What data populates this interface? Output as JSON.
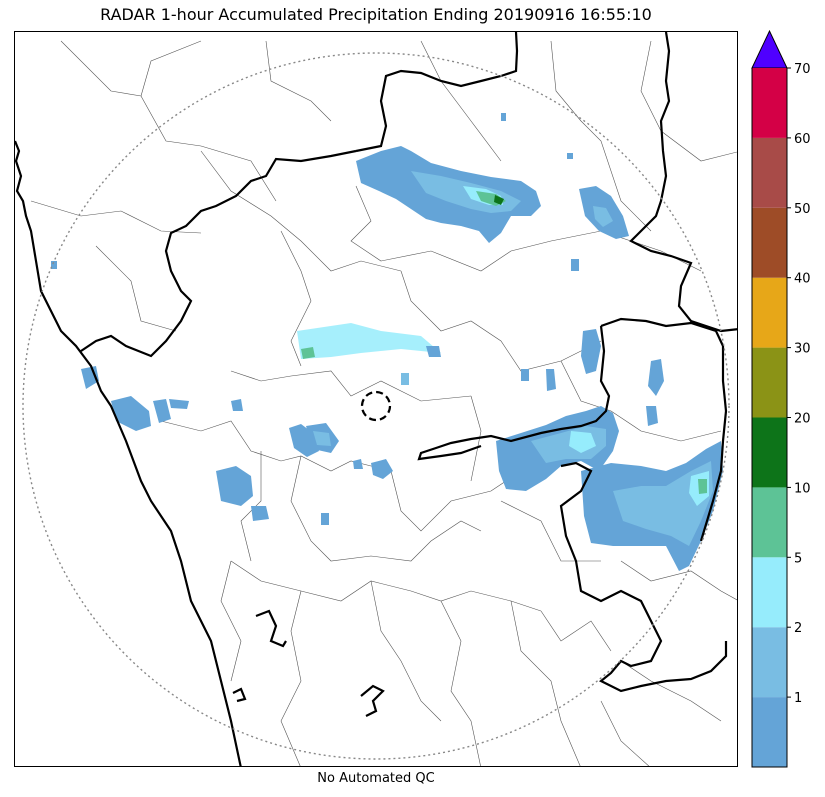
{
  "title": "RADAR 1-hour Accumulated Precipitation Ending 20190916 16:55:10",
  "footer": "No Automated QC",
  "colorbar": {
    "levels": [
      {
        "color": "#64a4d7",
        "label": "1"
      },
      {
        "color": "#79bde3",
        "label": "2"
      },
      {
        "color": "#96ecfc",
        "label": "5"
      },
      {
        "color": "#5dc396",
        "label": "10"
      },
      {
        "color": "#0d7419",
        "label": "20"
      },
      {
        "color": "#8b9316",
        "label": "30"
      },
      {
        "color": "#e7a718",
        "label": "40"
      },
      {
        "color": "#9e4c27",
        "label": "50"
      },
      {
        "color": "#a84b48",
        "label": "60"
      },
      {
        "color": "#d40046",
        "label": "70"
      }
    ],
    "extend_color": "#4f00ff"
  },
  "map": {
    "range_ring": "dotted-gray",
    "radar_site_marker": "dashed-circle"
  }
}
